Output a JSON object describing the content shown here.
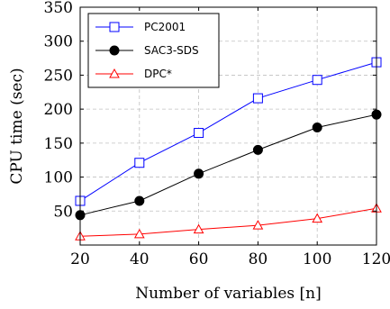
{
  "chart_data": {
    "type": "line",
    "xlabel": "Number of variables [n]",
    "ylabel": "CPU time (sec)",
    "x": [
      20,
      40,
      60,
      80,
      100,
      120
    ],
    "xlim": [
      20,
      120
    ],
    "ylim": [
      0,
      350
    ],
    "xticks": [
      "20",
      "40",
      "60",
      "80",
      "100",
      "120"
    ],
    "yticks": [
      "50",
      "100",
      "150",
      "200",
      "250",
      "300",
      "350"
    ],
    "grid": true,
    "legend_position": "top-left",
    "series": [
      {
        "name": "PC2001",
        "values": [
          65,
          121,
          165,
          216,
          243,
          269
        ],
        "color": "#0000ff",
        "marker": "square"
      },
      {
        "name": "SAC3-SDS",
        "values": [
          44,
          65,
          105,
          140,
          173,
          192
        ],
        "color": "#000000",
        "marker": "circle"
      },
      {
        "name": "DPC*",
        "values": [
          13,
          16,
          23,
          29,
          39,
          54
        ],
        "color": "#ff0000",
        "marker": "triangle"
      }
    ]
  }
}
